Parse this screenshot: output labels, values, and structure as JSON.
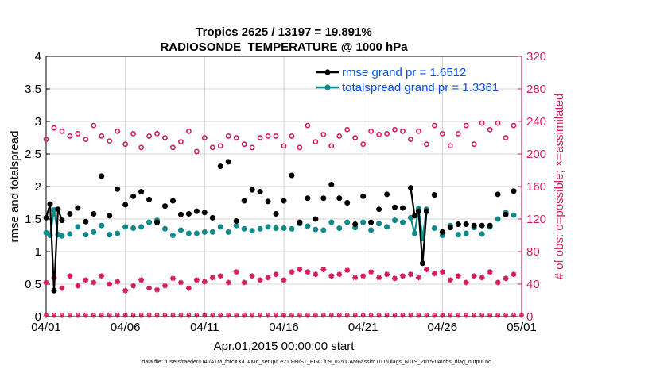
{
  "chart_data": {
    "type": "line",
    "title_line1": "Tropics 2625 / 13197 = 19.891%",
    "title_line2": "RADIOSONDE_TEMPERATURE @ 1000 hPa",
    "xlabel": "Apr.01,2015 00:00:00 start",
    "ylabel_left": "rmse and totalspread",
    "ylabel_right": "# of obs: o=possible; ×=assimilated",
    "footnote": "data file: /Users/raeder/DAI/ATM_forcXX/CAM6_setup/f.e21.FHIST_BGC.f09_025.CAM6assim.011/Diags_NTrS_2015-04/obs_diag_output.nc",
    "xlim": [
      0,
      30
    ],
    "ylim_left": [
      0,
      4
    ],
    "ylim_right": [
      0,
      320
    ],
    "x_tick_values": [
      0,
      5,
      10,
      15,
      20,
      25,
      30
    ],
    "x_tick_labels": [
      "04/01",
      "04/06",
      "04/11",
      "04/16",
      "04/21",
      "04/26",
      "05/01"
    ],
    "y_left_ticks": [
      "0",
      "0.5",
      "1",
      "1.5",
      "2",
      "2.5",
      "3",
      "3.5",
      "4"
    ],
    "y_right_ticks": [
      "0",
      "40",
      "80",
      "120",
      "160",
      "200",
      "240",
      "280",
      "320"
    ],
    "legend": {
      "rmse_label": "rmse grand pr = 1.6512",
      "spread_label": "totalspread grand pr = 1.3361"
    },
    "colors": {
      "rmse": "#000000",
      "spread": "#0f8a8a",
      "obs": "#d81b60",
      "axis": "#000000",
      "right_axis": "#d81b60",
      "grid": "#c8c8c8",
      "legend_text": "#0a4fd8"
    },
    "series": [
      {
        "name": "rmse",
        "x": [
          0,
          0.25,
          0.5,
          0.75,
          1,
          1.5,
          2,
          2.5,
          3,
          3.5,
          4,
          4.5,
          5,
          5.5,
          6,
          6.5,
          7,
          7.5,
          8,
          8.5,
          9,
          9.5,
          10,
          10.5,
          11,
          11.5,
          12,
          12.5,
          13,
          13.5,
          14,
          14.5,
          15,
          15.5,
          16,
          16.5,
          17,
          17.5,
          18,
          18.5,
          19,
          19.5,
          20,
          20.5,
          21,
          21.5,
          22,
          22.5,
          23,
          23.25,
          23.5,
          23.75,
          24,
          24.5,
          25,
          25.5,
          26,
          26.5,
          27,
          27.5,
          28,
          28.5,
          29,
          29.5
        ],
        "values": [
          1.52,
          1.73,
          0.4,
          1.65,
          1.48,
          1.58,
          1.67,
          1.46,
          1.58,
          2.16,
          1.55,
          1.96,
          1.72,
          1.85,
          1.92,
          1.8,
          1.45,
          1.7,
          1.78,
          1.57,
          1.58,
          1.62,
          1.6,
          1.52,
          2.31,
          2.38,
          1.47,
          1.78,
          1.95,
          1.92,
          1.77,
          1.58,
          1.78,
          2.17,
          1.45,
          1.82,
          1.5,
          1.82,
          2.03,
          1.82,
          1.75,
          1.42,
          1.85,
          1.45,
          1.65,
          1.88,
          1.68,
          1.67,
          1.98,
          1.55,
          1.62,
          0.82,
          1.62,
          1.87,
          1.3,
          1.37,
          1.42,
          1.42,
          1.4,
          1.4,
          1.4,
          1.88,
          1.57,
          1.93
        ]
      },
      {
        "name": "totalspread",
        "x": [
          0,
          0.25,
          0.5,
          0.75,
          1,
          1.5,
          2,
          2.5,
          3,
          3.5,
          4,
          4.5,
          5,
          5.5,
          6,
          6.5,
          7,
          7.5,
          8,
          8.5,
          9,
          9.5,
          10,
          10.5,
          11,
          11.5,
          12,
          12.5,
          13,
          13.5,
          14,
          14.5,
          15,
          15.5,
          16,
          16.5,
          17,
          17.5,
          18,
          18.5,
          19,
          19.5,
          20,
          20.5,
          21,
          21.5,
          22,
          22.5,
          23,
          23.25,
          23.5,
          23.75,
          24,
          24.5,
          25,
          25.5,
          26,
          26.5,
          27,
          27.5,
          28,
          28.5,
          29,
          29.5
        ],
        "values": [
          1.29,
          1.25,
          1.64,
          1.26,
          1.24,
          1.27,
          1.38,
          1.26,
          1.3,
          1.4,
          1.26,
          1.28,
          1.38,
          1.36,
          1.38,
          1.45,
          1.48,
          1.35,
          1.25,
          1.33,
          1.28,
          1.28,
          1.3,
          1.3,
          1.38,
          1.3,
          1.4,
          1.35,
          1.32,
          1.35,
          1.38,
          1.36,
          1.36,
          1.35,
          1.43,
          1.39,
          1.34,
          1.33,
          1.45,
          1.36,
          1.45,
          1.37,
          1.45,
          1.33,
          1.43,
          1.38,
          1.48,
          1.45,
          1.52,
          1.28,
          1.66,
          1.2,
          1.65,
          1.36,
          1.25,
          1.4,
          1.26,
          1.28,
          1.37,
          1.27,
          1.38,
          1.5,
          1.6,
          1.56
        ]
      },
      {
        "name": "obs possible",
        "axis": "right",
        "x": [
          0,
          0.5,
          1,
          1.5,
          2,
          2.5,
          3,
          3.5,
          4,
          4.5,
          5,
          5.5,
          6,
          6.5,
          7,
          7.5,
          8,
          8.5,
          9,
          9.5,
          10,
          10.5,
          11,
          11.5,
          12,
          12.5,
          13,
          13.5,
          14,
          14.5,
          15,
          15.5,
          16,
          16.5,
          17,
          17.5,
          18,
          18.5,
          19,
          19.5,
          20,
          20.5,
          21,
          21.5,
          22,
          22.5,
          23,
          23.5,
          24,
          24.5,
          25,
          25.5,
          26,
          26.5,
          27,
          27.5,
          28,
          28.5,
          29,
          29.5
        ],
        "values": [
          218,
          232,
          228,
          222,
          225,
          218,
          235,
          222,
          216,
          228,
          212,
          225,
          208,
          222,
          225,
          220,
          208,
          215,
          228,
          203,
          220,
          208,
          210,
          222,
          220,
          212,
          208,
          220,
          222,
          222,
          210,
          222,
          208,
          235,
          215,
          224,
          210,
          222,
          230,
          220,
          212,
          228,
          224,
          225,
          230,
          228,
          218,
          228,
          212,
          235,
          225,
          210,
          225,
          235,
          212,
          238,
          230,
          238,
          220,
          235
        ]
      },
      {
        "name": "obs assimilated",
        "axis": "right",
        "x": [
          0,
          0.5,
          1,
          1.5,
          2,
          2.5,
          3,
          3.5,
          4,
          4.5,
          5,
          5.5,
          6,
          6.5,
          7,
          7.5,
          8,
          8.5,
          9,
          9.5,
          10,
          10.5,
          11,
          11.5,
          12,
          12.5,
          13,
          13.5,
          14,
          14.5,
          15,
          15.5,
          16,
          16.5,
          17,
          17.5,
          18,
          18.5,
          19,
          19.5,
          20,
          20.5,
          21,
          21.5,
          22,
          22.5,
          23,
          23.5,
          24,
          24.5,
          25,
          25.5,
          26,
          26.5,
          27,
          27.5,
          28,
          28.5,
          29,
          29.5
        ],
        "values": [
          42,
          48,
          35,
          50,
          38,
          45,
          42,
          50,
          40,
          43,
          32,
          38,
          45,
          35,
          33,
          38,
          47,
          42,
          35,
          45,
          43,
          48,
          50,
          42,
          55,
          42,
          50,
          45,
          48,
          52,
          45,
          55,
          58,
          55,
          52,
          58,
          50,
          52,
          57,
          48,
          50,
          55,
          48,
          52,
          47,
          50,
          52,
          48,
          58,
          53,
          55,
          45,
          50,
          42,
          50,
          48,
          55,
          42,
          47,
          52
        ]
      }
    ]
  }
}
